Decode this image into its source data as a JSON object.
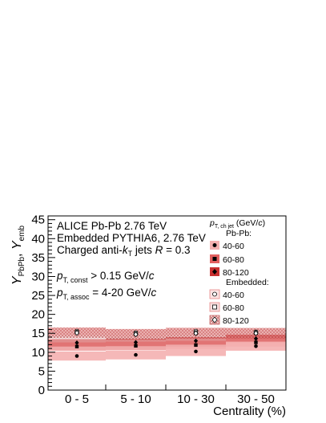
{
  "chart_data": {
    "type": "scatter",
    "categories": [
      "0 -  5",
      "5 - 10",
      "10 - 30",
      "30 - 50"
    ],
    "xlabel": "Centrality (%)",
    "ylabel_parts": [
      "Y",
      "PbPb",
      ", ",
      "Y",
      "emb"
    ],
    "ylim": [
      0,
      46
    ],
    "yticks": [
      0,
      5,
      10,
      15,
      20,
      25,
      30,
      35,
      40,
      45
    ],
    "annotations": {
      "line1": "ALICE Pb-Pb 2.76 TeV",
      "line2": "Embedded PYTHIA6, 2.76 TeV",
      "line3_pre": "Charged anti-",
      "line3_k": "k",
      "line3_ksub": "T",
      "line3_mid": " jets ",
      "line3_R": "R",
      "line3_post": " = 0.3",
      "const_p": "p",
      "const_sub": "T, const",
      "const_val": " > 0.15 GeV/",
      "const_c": "c",
      "assoc_p": "p",
      "assoc_sub": "T, assoc",
      "assoc_val": " = 4-20 GeV/",
      "assoc_c": "c"
    },
    "legend": {
      "placement": "top-right",
      "header_p": "p",
      "header_sub": "T, ch jet",
      "header_unit": " (GeV/",
      "header_c": "c",
      "header_close": ")",
      "group1": "Pb-Pb:",
      "group2": "Embedded:",
      "entries": [
        "40-60",
        "60-80",
        "80-120",
        "40-60",
        "60-80",
        "80-120"
      ]
    },
    "series": [
      {
        "name": "40-60",
        "group": "Pb-Pb",
        "values": [
          9.0,
          9.3,
          10.2,
          11.6
        ],
        "band": [
          1.2,
          1.2,
          1.2,
          1.2
        ],
        "color": "#f4b0b0"
      },
      {
        "name": "60-80",
        "group": "Pb-Pb",
        "values": [
          11.5,
          11.7,
          11.9,
          12.6
        ],
        "band": [
          1.1,
          1.1,
          1.1,
          1.1
        ],
        "color": "#e26060"
      },
      {
        "name": "80-120",
        "group": "Pb-Pb",
        "values": [
          12.5,
          12.6,
          13.0,
          13.6
        ],
        "band": [
          1.0,
          1.0,
          1.0,
          1.0
        ],
        "color": "#c83030"
      },
      {
        "name": "40-60",
        "group": "Embedded",
        "values": [
          15.6,
          15.2,
          15.6,
          15.4
        ],
        "band": [
          1.0,
          1.0,
          1.0,
          1.0
        ],
        "color": "#e88888"
      },
      {
        "name": "60-80",
        "group": "Embedded",
        "values": [
          15.3,
          14.9,
          15.2,
          15.2
        ],
        "band": [
          1.1,
          1.1,
          1.1,
          1.1
        ],
        "color": "#e88888"
      },
      {
        "name": "80-120",
        "group": "Embedded",
        "values": [
          15.1,
          14.7,
          15.0,
          15.0
        ],
        "band": [
          1.4,
          1.4,
          1.4,
          1.4
        ],
        "color": "#c86464"
      }
    ]
  }
}
